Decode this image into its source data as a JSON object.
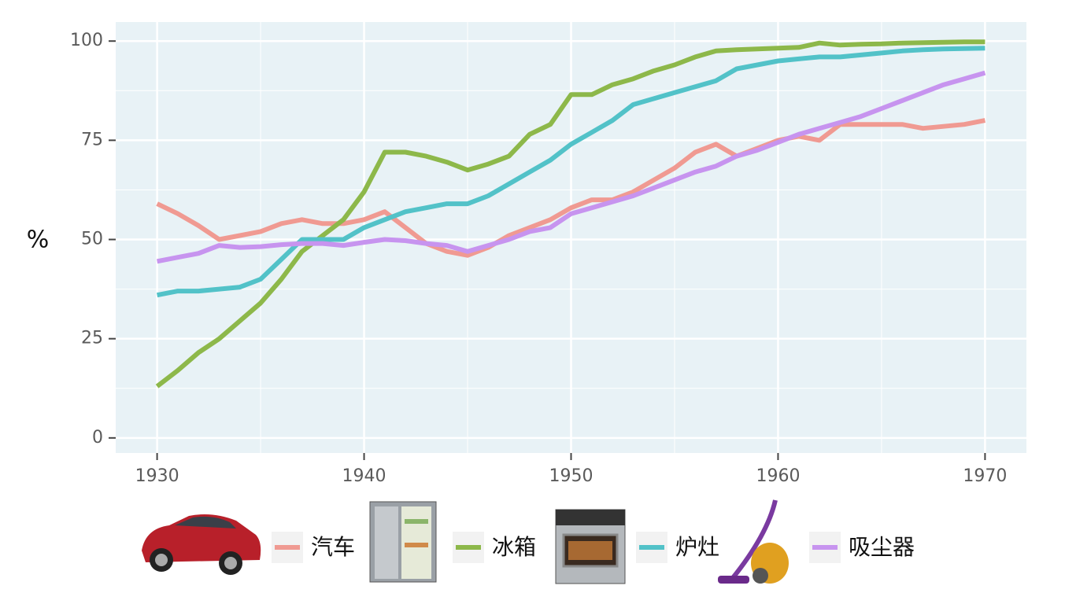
{
  "chart_data": {
    "type": "line",
    "y_label": "%",
    "x": [
      1930,
      1931,
      1932,
      1933,
      1934,
      1935,
      1936,
      1937,
      1938,
      1939,
      1940,
      1941,
      1942,
      1943,
      1944,
      1945,
      1946,
      1947,
      1948,
      1949,
      1950,
      1951,
      1952,
      1953,
      1954,
      1955,
      1956,
      1957,
      1958,
      1959,
      1960,
      1961,
      1962,
      1963,
      1964,
      1965,
      1966,
      1967,
      1968,
      1969,
      1970
    ],
    "series": [
      {
        "name": "汽车",
        "color": "#f09a92",
        "values": [
          59,
          56.5,
          53.5,
          50,
          51,
          52,
          54,
          55,
          54,
          54,
          55,
          57,
          53,
          49,
          47,
          46,
          48,
          51,
          53,
          55,
          58,
          60,
          60,
          62,
          65,
          68,
          72,
          74,
          71,
          73,
          75,
          76,
          75,
          79,
          79,
          79,
          79,
          78,
          78.5,
          79,
          80
        ]
      },
      {
        "name": "冰箱",
        "color": "#8db84a",
        "values": [
          13,
          17,
          21.5,
          25,
          29.5,
          34,
          40,
          47,
          51,
          55,
          62,
          72,
          72,
          71,
          69.5,
          67.5,
          69,
          71,
          76.5,
          79,
          86.5,
          86.5,
          89,
          90.5,
          92.5,
          94,
          96,
          97.5,
          97.8,
          98,
          98.2,
          98.4,
          99.5,
          99,
          99.2,
          99.3,
          99.5,
          99.6,
          99.7,
          99.8,
          99.8
        ]
      },
      {
        "name": "炉灶",
        "color": "#52c2c8",
        "values": [
          36,
          37,
          37,
          37.5,
          38,
          40,
          45,
          50,
          50,
          50,
          53,
          55,
          57,
          58,
          59,
          59,
          61,
          64,
          67,
          70,
          74,
          77,
          80,
          84,
          85.5,
          87,
          88.5,
          90,
          93,
          94,
          95,
          95.5,
          96,
          96,
          96.5,
          97,
          97.5,
          97.8,
          98,
          98.1,
          98.2
        ]
      },
      {
        "name": "吸尘器",
        "color": "#c794ef",
        "values": [
          44.5,
          45.5,
          46.5,
          48.5,
          48,
          48.2,
          48.7,
          49,
          49,
          48.5,
          49.3,
          50,
          49.7,
          49,
          48.5,
          47,
          48.5,
          50,
          52,
          53,
          56.5,
          58,
          59.5,
          61,
          63,
          65,
          67,
          68.5,
          71,
          72.5,
          74.5,
          76.5,
          78,
          79.5,
          81,
          83,
          85,
          87,
          89,
          90.5,
          92
        ]
      }
    ],
    "xlim": [
      1928,
      1972
    ],
    "xticks": [
      1930,
      1940,
      1950,
      1960,
      1970
    ],
    "ylim": [
      -3.8,
      104.8
    ],
    "yticks": [
      0,
      25,
      50,
      75,
      100
    ],
    "grid": true
  }
}
